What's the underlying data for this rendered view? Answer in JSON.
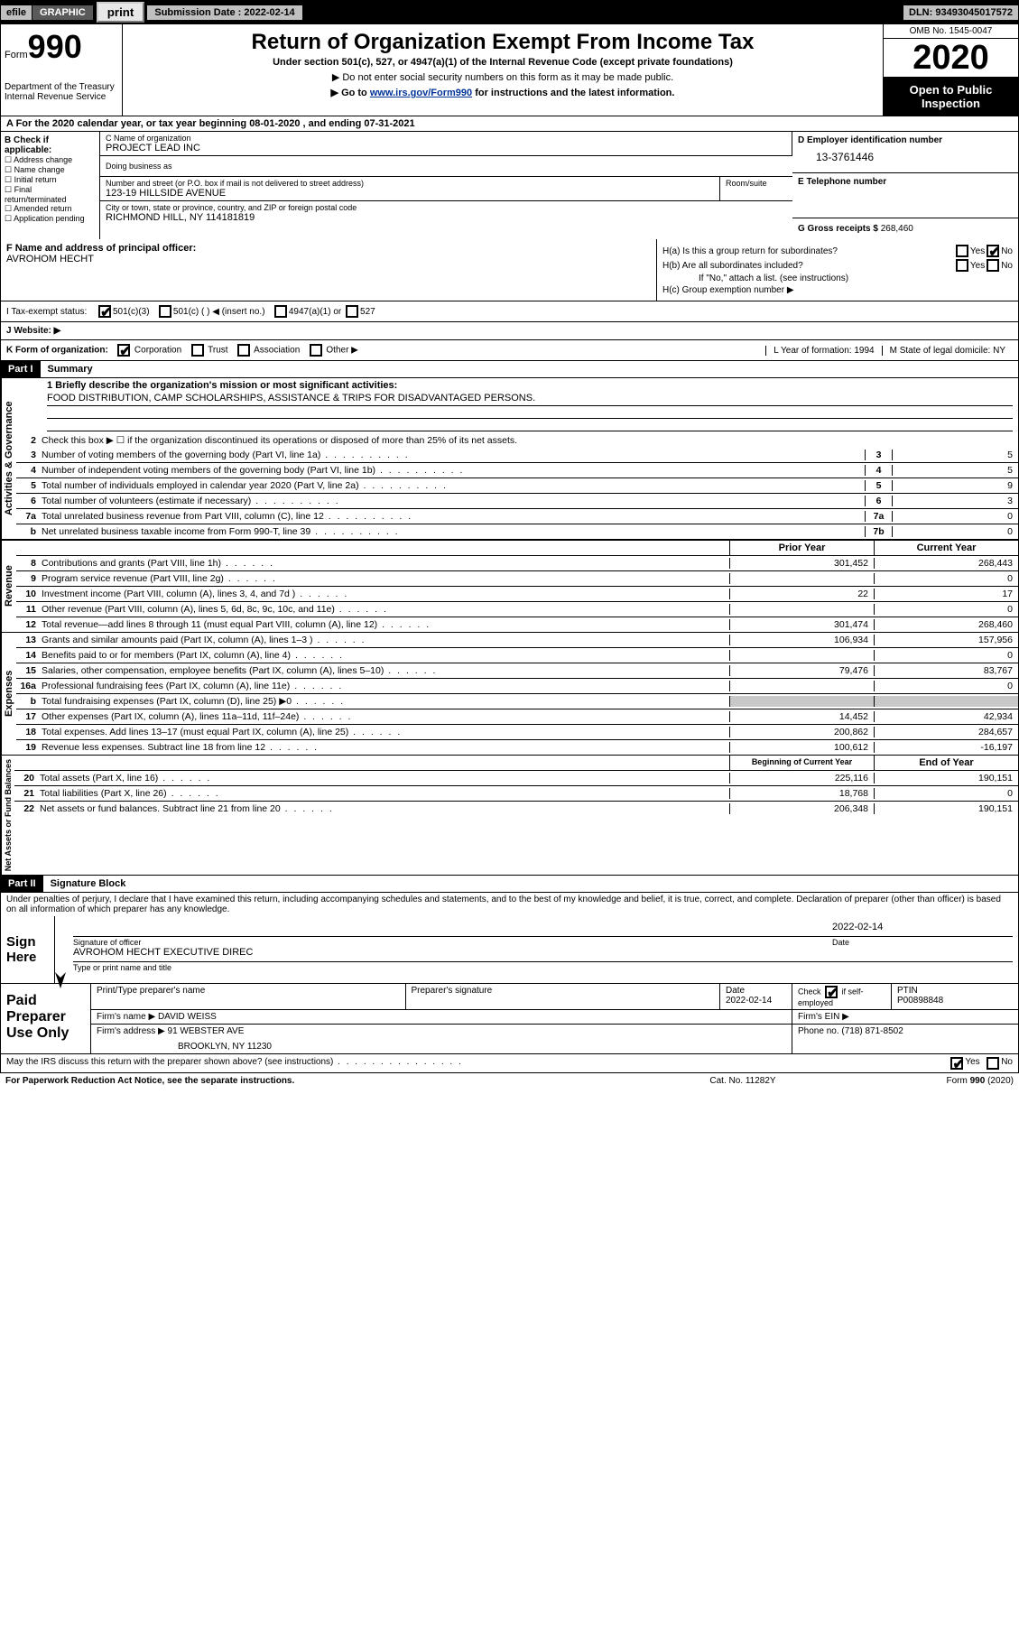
{
  "topbar": {
    "efile": "efile",
    "graphic": "GRAPHIC",
    "print": "print",
    "submission_label": "Submission Date : ",
    "submission_date": "2022-02-14",
    "dln_label": "DLN: ",
    "dln": "93493045017572"
  },
  "header": {
    "form_label": "Form",
    "form_num": "990",
    "dept": "Department of the Treasury\nInternal Revenue Service",
    "title": "Return of Organization Exempt From Income Tax",
    "subtitle": "Under section 501(c), 527, or 4947(a)(1) of the Internal Revenue Code (except private foundations)",
    "line1": "▶ Do not enter social security numbers on this form as it may be made public.",
    "line2_pre": "▶ Go to ",
    "line2_link": "www.irs.gov/Form990",
    "line2_post": " for instructions and the latest information.",
    "omb": "OMB No. 1545-0047",
    "year": "2020",
    "open": "Open to Public Inspection"
  },
  "rowA": {
    "text": "A For the 2020 calendar year, or tax year beginning 08-01-2020     , and ending 07-31-2021"
  },
  "B": {
    "head": "B Check if applicable:",
    "opts": [
      "Address change",
      "Name change",
      "Initial return",
      "Final return/terminated",
      "Amended return",
      "Application pending"
    ]
  },
  "C": {
    "name_label": "C Name of organization",
    "name": "PROJECT LEAD INC",
    "dba_label": "Doing business as",
    "street_label": "Number and street (or P.O. box if mail is not delivered to street address)",
    "street": "123-19 HILLSIDE AVENUE",
    "room_label": "Room/suite",
    "city_label": "City or town, state or province, country, and ZIP or foreign postal code",
    "city": "RICHMOND HILL, NY  114181819"
  },
  "D": {
    "label": "D Employer identification number",
    "value": "13-3761446"
  },
  "E": {
    "label": "E Telephone number"
  },
  "G": {
    "label": "G Gross receipts $ ",
    "value": "268,460"
  },
  "F": {
    "label": "F  Name and address of principal officer:",
    "name": "AVROHOM HECHT"
  },
  "H": {
    "a_label": "H(a)  Is this a group return for subordinates?",
    "b_label": "H(b)  Are all subordinates included?",
    "b_note": "If \"No,\" attach a list. (see instructions)",
    "c_label": "H(c)  Group exemption number ▶",
    "yes": "Yes",
    "no": "No"
  },
  "I": {
    "label": "I      Tax-exempt status:",
    "opts": [
      "501(c)(3)",
      "501(c) (  ) ◀ (insert no.)",
      "4947(a)(1) or",
      "527"
    ]
  },
  "J": {
    "label": "J     Website: ▶"
  },
  "K": {
    "label": "K Form of organization:",
    "opts": [
      "Corporation",
      "Trust",
      "Association",
      "Other ▶"
    ],
    "L": "L Year of formation: 1994",
    "M": "M State of legal domicile: NY"
  },
  "partI": {
    "hdr": "Part I",
    "title": "Summary"
  },
  "summary": {
    "gov_label": "Activities & Governance",
    "mission_q": "1   Briefly describe the organization's mission or most significant activities:",
    "mission": "FOOD DISTRIBUTION, CAMP SCHOLARSHIPS, ASSISTANCE & TRIPS FOR DISADVANTAGED PERSONS.",
    "line2": "Check this box ▶ ☐  if the organization discontinued its operations or disposed of more than 25% of its net assets.",
    "lines": [
      {
        "n": "3",
        "t": "Number of voting members of the governing body (Part VI, line 1a)",
        "box": "3",
        "v": "5"
      },
      {
        "n": "4",
        "t": "Number of independent voting members of the governing body (Part VI, line 1b)",
        "box": "4",
        "v": "5"
      },
      {
        "n": "5",
        "t": "Total number of individuals employed in calendar year 2020 (Part V, line 2a)",
        "box": "5",
        "v": "9"
      },
      {
        "n": "6",
        "t": "Total number of volunteers (estimate if necessary)",
        "box": "6",
        "v": "3"
      },
      {
        "n": "7a",
        "t": "Total unrelated business revenue from Part VIII, column (C), line 12",
        "box": "7a",
        "v": "0"
      },
      {
        "n": "b",
        "t": "Net unrelated business taxable income from Form 990-T, line 39",
        "box": "7b",
        "v": "0"
      }
    ],
    "col_prior": "Prior Year",
    "col_current": "Current Year",
    "rev_label": "Revenue",
    "revenue": [
      {
        "n": "8",
        "t": "Contributions and grants (Part VIII, line 1h)",
        "p": "301,452",
        "c": "268,443"
      },
      {
        "n": "9",
        "t": "Program service revenue (Part VIII, line 2g)",
        "p": "",
        "c": "0"
      },
      {
        "n": "10",
        "t": "Investment income (Part VIII, column (A), lines 3, 4, and 7d )",
        "p": "22",
        "c": "17"
      },
      {
        "n": "11",
        "t": "Other revenue (Part VIII, column (A), lines 5, 6d, 8c, 9c, 10c, and 11e)",
        "p": "",
        "c": "0"
      },
      {
        "n": "12",
        "t": "Total revenue—add lines 8 through 11 (must equal Part VIII, column (A), line 12)",
        "p": "301,474",
        "c": "268,460"
      }
    ],
    "exp_label": "Expenses",
    "expenses": [
      {
        "n": "13",
        "t": "Grants and similar amounts paid (Part IX, column (A), lines 1–3 )",
        "p": "106,934",
        "c": "157,956"
      },
      {
        "n": "14",
        "t": "Benefits paid to or for members (Part IX, column (A), line 4)",
        "p": "",
        "c": "0"
      },
      {
        "n": "15",
        "t": "Salaries, other compensation, employee benefits (Part IX, column (A), lines 5–10)",
        "p": "79,476",
        "c": "83,767"
      },
      {
        "n": "16a",
        "t": "Professional fundraising fees (Part IX, column (A), line 11e)",
        "p": "",
        "c": "0"
      },
      {
        "n": "b",
        "t": "Total fundraising expenses (Part IX, column (D), line 25) ▶0",
        "p": "shade",
        "c": "shade"
      },
      {
        "n": "17",
        "t": "Other expenses (Part IX, column (A), lines 11a–11d, 11f–24e)",
        "p": "14,452",
        "c": "42,934"
      },
      {
        "n": "18",
        "t": "Total expenses. Add lines 13–17 (must equal Part IX, column (A), line 25)",
        "p": "200,862",
        "c": "284,657"
      },
      {
        "n": "19",
        "t": "Revenue less expenses. Subtract line 18 from line 12",
        "p": "100,612",
        "c": "-16,197"
      }
    ],
    "na_label": "Net Assets or Fund Balances",
    "col_begin": "Beginning of Current Year",
    "col_end": "End of Year",
    "netassets": [
      {
        "n": "20",
        "t": "Total assets (Part X, line 16)",
        "p": "225,116",
        "c": "190,151"
      },
      {
        "n": "21",
        "t": "Total liabilities (Part X, line 26)",
        "p": "18,768",
        "c": "0"
      },
      {
        "n": "22",
        "t": "Net assets or fund balances. Subtract line 21 from line 20",
        "p": "206,348",
        "c": "190,151"
      }
    ]
  },
  "partII": {
    "hdr": "Part II",
    "title": "Signature Block"
  },
  "penalties": "Under penalties of perjury, I declare that I have examined this return, including accompanying schedules and statements, and to the best of my knowledge and belief, it is true, correct, and complete. Declaration of preparer (other than officer) is based on all information of which preparer has any knowledge.",
  "sign": {
    "label": "Sign Here",
    "sig_officer": "Signature of officer",
    "date_label": "Date",
    "date": "2022-02-14",
    "name": "AVROHOM HECHT  EXECUTIVE DIREC",
    "name_label": "Type or print name and title"
  },
  "paid": {
    "label": "Paid Preparer Use Only",
    "h_name": "Print/Type preparer's name",
    "h_sig": "Preparer's signature",
    "h_date": "Date",
    "date": "2022-02-14",
    "h_check": "Check ☑ if self-employed",
    "h_ptin": "PTIN",
    "ptin": "P00898848",
    "firm_name_label": "Firm's name     ▶ ",
    "firm_name": "DAVID WEISS",
    "firm_ein_label": "Firm's EIN ▶",
    "firm_addr_label": "Firm's address ▶ ",
    "firm_addr1": "91 WEBSTER AVE",
    "firm_addr2": "BROOKLYN, NY  11230",
    "phone_label": "Phone no. ",
    "phone": "(718) 871-8502"
  },
  "discuss": {
    "text": "May the IRS discuss this return with the preparer shown above? (see instructions)",
    "yes": "Yes",
    "no": "No"
  },
  "footer": {
    "left": "For Paperwork Reduction Act Notice, see the separate instructions.",
    "mid": "Cat. No. 11282Y",
    "right": "Form 990 (2020)"
  }
}
